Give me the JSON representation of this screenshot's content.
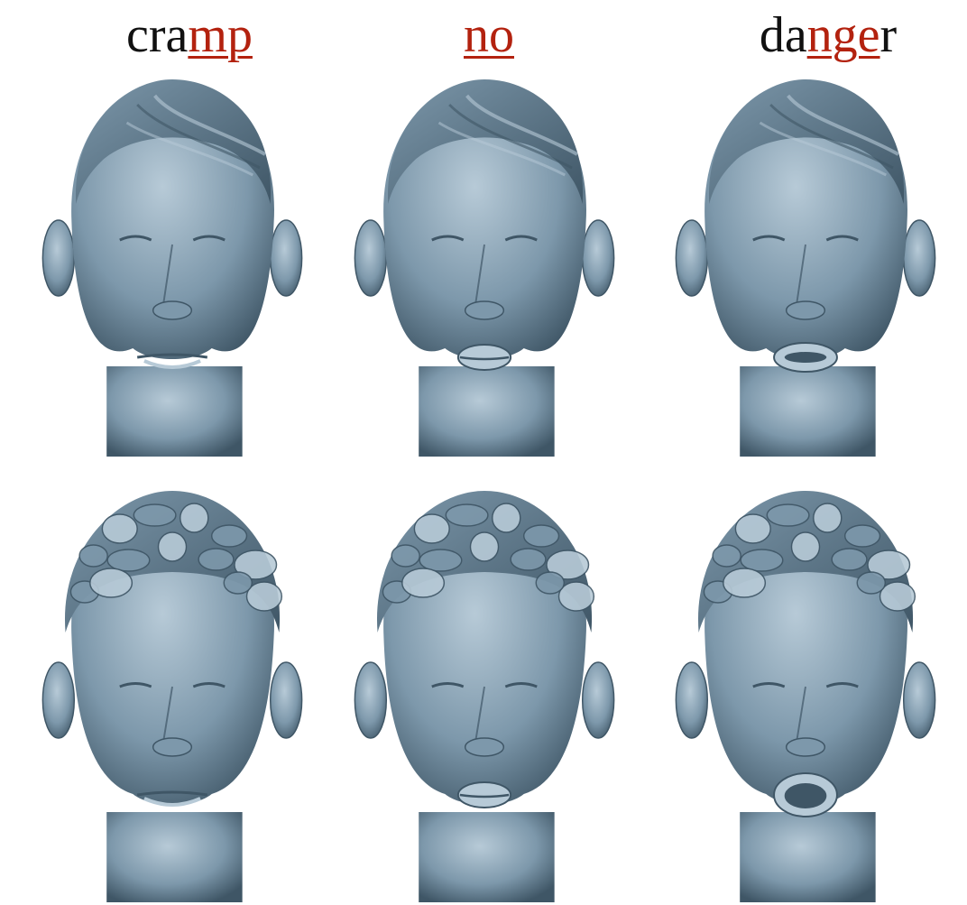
{
  "labels": [
    {
      "plain_before": "cra",
      "highlight": "mp",
      "plain_after": ""
    },
    {
      "plain_before": "",
      "highlight": "no",
      "plain_after": ""
    },
    {
      "plain_before": "da",
      "highlight": "nge",
      "plain_after": "r"
    }
  ],
  "colors": {
    "text": "#111111",
    "highlight": "#b3220f",
    "skin": "#7d98ab",
    "skin_light": "#b7cad7",
    "skin_dark": "#3f5666"
  },
  "rows": [
    {
      "subject": "subject-1",
      "hair": "slicked",
      "mouth_states": [
        "closed",
        "pursed",
        "open"
      ]
    },
    {
      "subject": "subject-2",
      "hair": "curly",
      "mouth_states": [
        "closed",
        "pursed",
        "open-wide"
      ]
    }
  ]
}
